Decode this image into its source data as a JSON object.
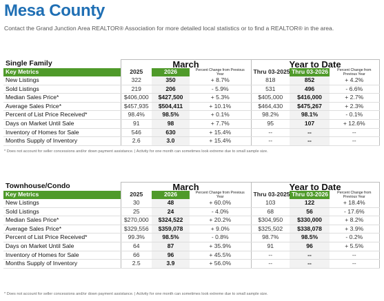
{
  "title": "Mesa County",
  "subtitle": "Contact the Grand Junction Area REALTOR® Association for more detailed local statistics or to find a REALTOR® in the area.",
  "sections": [
    {
      "title": "Single Family",
      "group_month": "March",
      "group_ytd": "Year to Date",
      "cols": [
        "Key Metrics",
        "2025",
        "2026",
        "Percent Change from Previous Year",
        "Thru 03-2025",
        "Thru 03-2026",
        "Percent Change from Previous Year"
      ],
      "rows": [
        [
          "New Listings",
          "322",
          "350",
          "+ 8.7%",
          "818",
          "852",
          "+ 4.2%"
        ],
        [
          "Sold Listings",
          "219",
          "206",
          "- 5.9%",
          "531",
          "496",
          "- 6.6%"
        ],
        [
          "Median Sales Price*",
          "$406,000",
          "$427,500",
          "+ 5.3%",
          "$405,000",
          "$416,000",
          "+ 2.7%"
        ],
        [
          "Average Sales Price*",
          "$457,935",
          "$504,411",
          "+ 10.1%",
          "$464,430",
          "$475,267",
          "+ 2.3%"
        ],
        [
          "Percent of List Price Received*",
          "98.4%",
          "98.5%",
          "+ 0.1%",
          "98.2%",
          "98.1%",
          "- 0.1%"
        ],
        [
          "Days on Market Until Sale",
          "91",
          "98",
          "+ 7.7%",
          "95",
          "107",
          "+ 12.6%"
        ],
        [
          "Inventory of Homes for Sale",
          "546",
          "630",
          "+ 15.4%",
          "--",
          "--",
          "--"
        ],
        [
          "Months Supply of Inventory",
          "2.6",
          "3.0",
          "+ 15.4%",
          "--",
          "--",
          "--"
        ]
      ],
      "footnote": "* Does not account for seller concessions and/or down payment assistance.  |  Activity for one month can sometimes look extreme due to small sample size."
    },
    {
      "title": "Townhouse/Condo",
      "group_month": "March",
      "group_ytd": "Year to Date",
      "cols": [
        "Key Metrics",
        "2025",
        "2026",
        "Percent Change from Previous Year",
        "Thru 03-2025",
        "Thru 03-2026",
        "Percent Change from Previous Year"
      ],
      "rows": [
        [
          "New Listings",
          "30",
          "48",
          "+ 60.0%",
          "103",
          "122",
          "+ 18.4%"
        ],
        [
          "Sold Listings",
          "25",
          "24",
          "- 4.0%",
          "68",
          "56",
          "- 17.6%"
        ],
        [
          "Median Sales Price*",
          "$270,000",
          "$324,522",
          "+ 20.2%",
          "$304,950",
          "$330,000",
          "+ 8.2%"
        ],
        [
          "Average Sales Price*",
          "$329,556",
          "$359,078",
          "+ 9.0%",
          "$325,502",
          "$338,078",
          "+ 3.9%"
        ],
        [
          "Percent of List Price Received*",
          "99.3%",
          "98.5%",
          "- 0.8%",
          "98.7%",
          "98.5%",
          "- 0.2%"
        ],
        [
          "Days on Market Until Sale",
          "64",
          "87",
          "+ 35.9%",
          "91",
          "96",
          "+ 5.5%"
        ],
        [
          "Inventory of Homes for Sale",
          "66",
          "96",
          "+ 45.5%",
          "--",
          "--",
          "--"
        ],
        [
          "Months Supply of Inventory",
          "2.5",
          "3.9",
          "+ 56.0%",
          "--",
          "--",
          "--"
        ]
      ],
      "footnote": "* Does not account for seller concessions and/or down payment assistance.  |  Activity for one month can sometimes look extreme due to small sample size."
    }
  ]
}
